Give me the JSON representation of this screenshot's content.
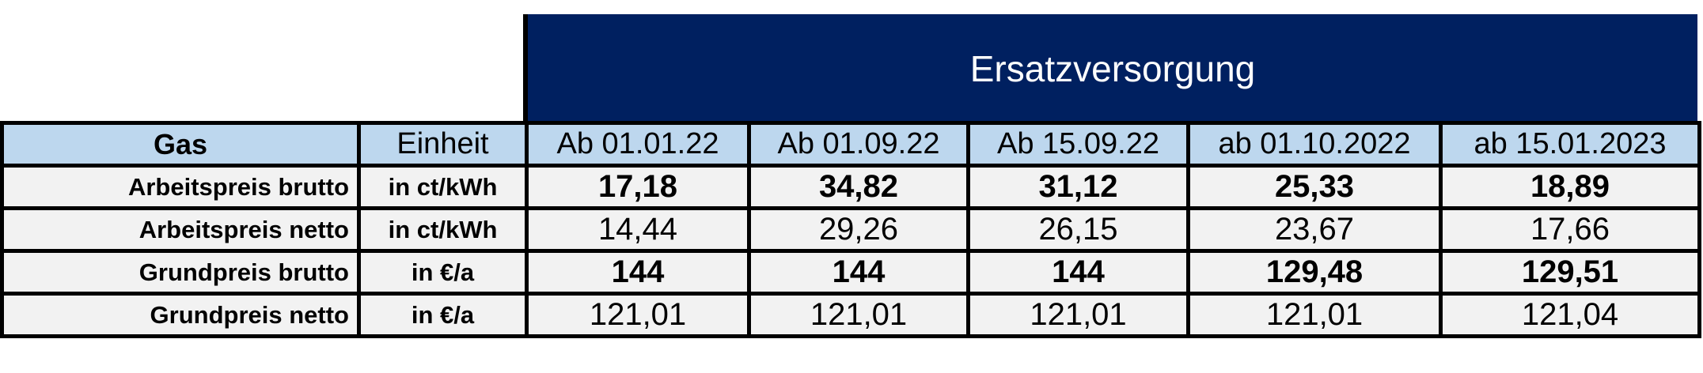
{
  "header": {
    "title": "Ersatzversorgung"
  },
  "table": {
    "columns": [
      "Gas",
      "Einheit",
      "Ab 01.01.22",
      "Ab 01.09.22",
      "Ab 15.09.22",
      "ab 01.10.2022",
      "ab 15.01.2023"
    ],
    "rows": [
      [
        "Arbeitspreis brutto",
        "in ct/kWh",
        "17,18",
        "34,82",
        "31,12",
        "25,33",
        "18,89"
      ],
      [
        "Arbeitspreis netto",
        "in ct/kWh",
        "14,44",
        "29,26",
        "26,15",
        "23,67",
        "17,66"
      ],
      [
        "Grundpreis brutto",
        "in €/a",
        "144",
        "144",
        "144",
        "129,48",
        "129,51"
      ],
      [
        "Grundpreis netto",
        "in €/a",
        "121,01",
        "121,01",
        "121,01",
        "121,01",
        "121,04"
      ]
    ]
  }
}
